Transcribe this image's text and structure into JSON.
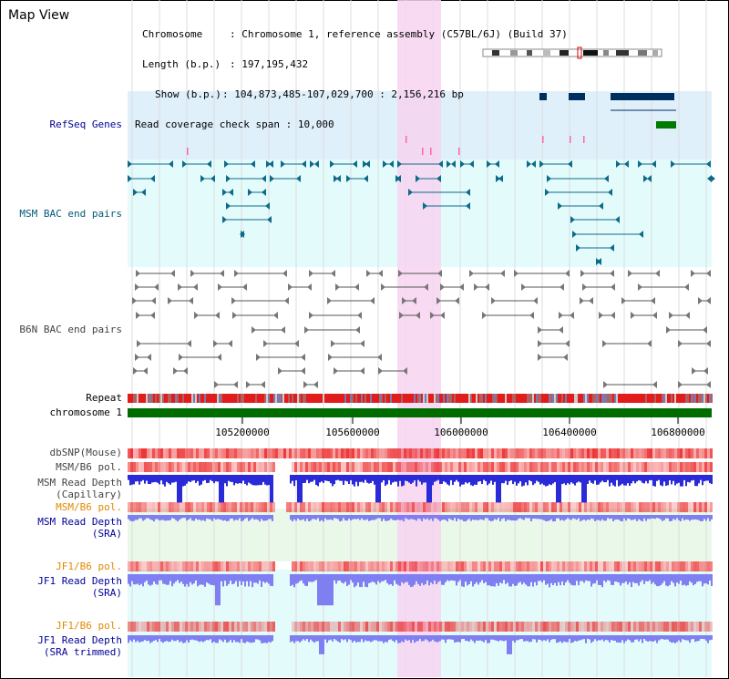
{
  "title": "Map View",
  "info": {
    "chromosome_label": "Chromosome",
    "chromosome_value": "Chromosome 1, reference assembly (C57BL/6J) (Build 37)",
    "length_label": "Length (b.p.)",
    "length_value": "197,195,432",
    "show_label": "Show (b.p.)",
    "show_value": "104,873,485-107,029,700 : 2,156,216 bp",
    "coverage_label": "Read coverage check span",
    "coverage_value": "10,000"
  },
  "tracks": {
    "refseq": "RefSeq Genes",
    "msm_bac": "MSM BAC end pairs",
    "b6n_bac": "B6N BAC end pairs",
    "repeat": "Repeat",
    "chromosome": "chromosome 1",
    "dbsnp": "dbSNP(Mouse)",
    "msm_b6_pol_1": "MSM/B6 pol.",
    "msm_cap_1": "MSM Read Depth",
    "msm_cap_2": "(Capillary)",
    "msm_b6_pol_2": "MSM/B6 pol.",
    "msm_sra_1": "MSM Read Depth",
    "msm_sra_2": "(SRA)",
    "jf1_pol_1": "JF1/B6 pol.",
    "jf1_sra_1": "JF1 Read Depth",
    "jf1_sra_2": "(SRA)",
    "jf1_pol_2": "JF1/B6 pol.",
    "jf1_trim_1": "JF1 Read Depth",
    "jf1_trim_2": "(SRA trimmed)"
  },
  "axis": {
    "ticks": [
      "105200000",
      "105600000",
      "106000000",
      "106400000",
      "106800000"
    ]
  },
  "colors": {
    "refseq_bg": "#dff0fb",
    "bac_bg": "#e3fbfb",
    "highlight": "#f7d3f0",
    "gene_navy": "#002e5e",
    "gene_green": "#007a00",
    "msm_teal": "#0f6a8a",
    "b6n_gray": "#555555",
    "chromosome_green": "#006c00",
    "depth_blue": "#2a2ad8",
    "depth_light": "#7f7ff2"
  }
}
